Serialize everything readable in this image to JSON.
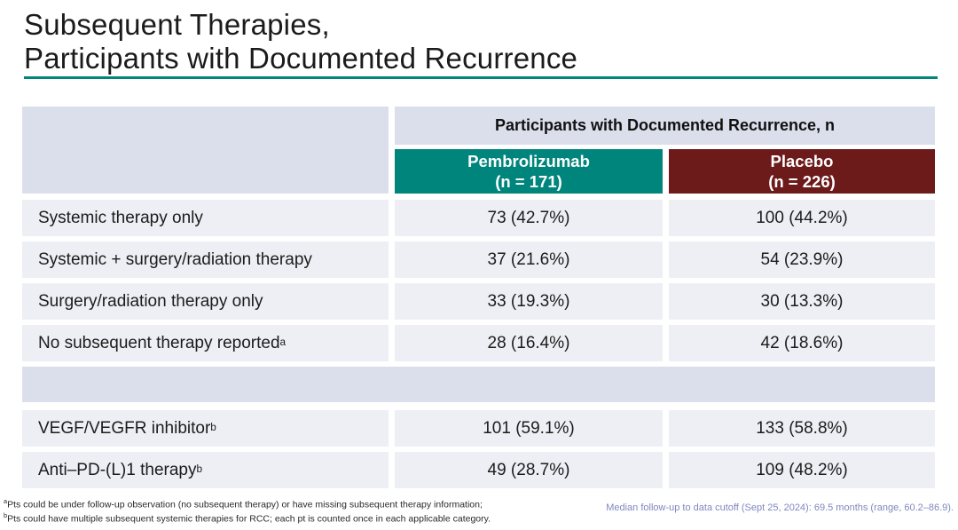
{
  "slide": {
    "title_line1": "Subsequent Therapies,",
    "title_line2": "Participants with Documented Recurrence"
  },
  "colors": {
    "accent_teal": "#00857C",
    "pembrolizumab_header_bg": "#00857C",
    "placebo_header_bg": "#6C1A1A",
    "header_band_bg": "#DBDFEC",
    "row_bg": "#EDEFF4",
    "footnote_right_text": "#7E88C0"
  },
  "table": {
    "header_band": "Participants with Documented Recurrence, n",
    "columns": [
      {
        "name": "Pembrolizumab",
        "n_label": "(n = 171)"
      },
      {
        "name": "Placebo",
        "n_label": "(n = 226)"
      }
    ],
    "rows": [
      {
        "label": "Systemic therapy only",
        "pembrolizumab": "73 (42.7%)",
        "placebo": "100 (44.2%)"
      },
      {
        "label": "Systemic + surgery/radiation therapy",
        "pembrolizumab": "37 (21.6%)",
        "placebo": "54 (23.9%)"
      },
      {
        "label": "Surgery/radiation therapy only",
        "pembrolizumab": "33 (19.3%)",
        "placebo": "30 (13.3%)"
      },
      {
        "label": "No subsequent therapy reported",
        "sup": "a",
        "pembrolizumab": "28 (16.4%)",
        "placebo": "42 (18.6%)"
      },
      {
        "label": "VEGF/VEGFR inhibitor",
        "sup": "b",
        "pembrolizumab": "101 (59.1%)",
        "placebo": "133 (58.8%)"
      },
      {
        "label": "Anti–PD-(L)1 therapy",
        "sup": "b",
        "pembrolizumab": "49 (28.7%)",
        "placebo": "109 (48.2%)"
      }
    ]
  },
  "footnotes": {
    "left": [
      {
        "sup": "a",
        "text": "Pts could be under follow-up observation (no subsequent therapy) or have missing subsequent therapy information;"
      },
      {
        "sup": "b",
        "text": "Pts could have multiple subsequent systemic therapies for RCC; each pt is counted once in each applicable category."
      }
    ],
    "right": "Median follow-up to data cutoff (Sept 25, 2024): 69.5 months (range, 60.2–86.9)."
  }
}
